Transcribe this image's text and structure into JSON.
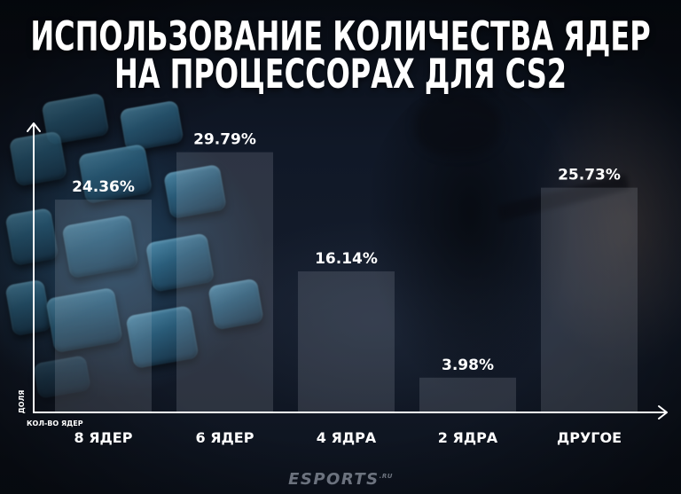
{
  "chart_data": {
    "type": "bar",
    "title": "ИСПОЛЬЗОВАНИЕ КОЛИЧЕСТВА ЯДЕР\nНА ПРОЦЕССОРАХ ДЛЯ CS2",
    "xlabel": "КОЛ-ВО ЯДЕР",
    "ylabel": "ДОЛЯ",
    "categories": [
      "8 ЯДЕР",
      "6 ЯДЕР",
      "4 ЯДРА",
      "2 ЯДРА",
      "ДРУГОЕ"
    ],
    "values": [
      24.36,
      29.79,
      16.14,
      3.98,
      25.73
    ],
    "value_labels": [
      "24.36%",
      "29.79%",
      "16.14%",
      "3.98%",
      "25.73%"
    ],
    "ylim": [
      0,
      33
    ],
    "grid": false
  },
  "logo": {
    "name": "ESPORTS",
    "suffix": ".RU"
  },
  "colors": {
    "background": "#0c121d",
    "bar": "rgba(190,196,208,0.17)",
    "text": "#ffffff",
    "axis": "#ffffff"
  }
}
